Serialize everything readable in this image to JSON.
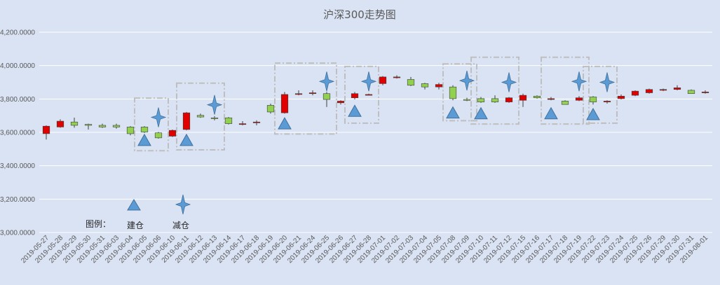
{
  "chart_data": {
    "type": "candlestick",
    "title": "沪深300走势图",
    "ylim": [
      3000,
      4200
    ],
    "yticks": [
      3000,
      3200,
      3400,
      3600,
      3800,
      4000,
      4200
    ],
    "ytick_labels": [
      "3,000.0000",
      "3,200.0000",
      "3,400.0000",
      "3,600.0000",
      "3,800.0000",
      "4,000.0000",
      "4,200.0000"
    ],
    "grid": true,
    "colors": {
      "up": "#e00000",
      "down": "#92d050",
      "marker": "#5b9bd5",
      "background": "#dae3f3",
      "grid": "#ffffff",
      "box": "#bfbfbf"
    },
    "categories": [
      "2019-05-27",
      "2019-05-28",
      "2019-05-29",
      "2019-05-30",
      "2019-05-31",
      "2019-06-03",
      "2019-06-04",
      "2019-06-05",
      "2019-06-06",
      "2019-06-10",
      "2019-06-11",
      "2019-06-12",
      "2019-06-13",
      "2019-06-14",
      "2019-06-17",
      "2019-06-18",
      "2019-06-19",
      "2019-06-20",
      "2019-06-21",
      "2019-06-24",
      "2019-06-25",
      "2019-06-26",
      "2019-06-27",
      "2019-06-28",
      "2019-07-01",
      "2019-07-02",
      "2019-07-03",
      "2019-07-04",
      "2019-07-05",
      "2019-07-08",
      "2019-07-09",
      "2019-07-10",
      "2019-07-11",
      "2019-07-12",
      "2019-07-15",
      "2019-07-16",
      "2019-07-17",
      "2019-07-18",
      "2019-07-19",
      "2019-07-22",
      "2019-07-23",
      "2019-07-24",
      "2019-07-25",
      "2019-07-26",
      "2019-07-29",
      "2019-07-30",
      "2019-07-31",
      "2019-08-01"
    ],
    "candles": [
      {
        "o": 3592,
        "h": 3642,
        "l": 3557,
        "c": 3637
      },
      {
        "o": 3632,
        "h": 3678,
        "l": 3628,
        "c": 3667
      },
      {
        "o": 3662,
        "h": 3688,
        "l": 3628,
        "c": 3642
      },
      {
        "o": 3648,
        "h": 3652,
        "l": 3617,
        "c": 3642
      },
      {
        "o": 3642,
        "h": 3652,
        "l": 3627,
        "c": 3632
      },
      {
        "o": 3642,
        "h": 3652,
        "l": 3622,
        "c": 3632
      },
      {
        "o": 3632,
        "h": 3637,
        "l": 3582,
        "c": 3592
      },
      {
        "o": 3632,
        "h": 3637,
        "l": 3597,
        "c": 3602
      },
      {
        "o": 3597,
        "h": 3602,
        "l": 3562,
        "c": 3567
      },
      {
        "o": 3577,
        "h": 3617,
        "l": 3572,
        "c": 3612
      },
      {
        "o": 3617,
        "h": 3722,
        "l": 3612,
        "c": 3717
      },
      {
        "o": 3702,
        "h": 3712,
        "l": 3687,
        "c": 3692
      },
      {
        "o": 3687,
        "h": 3697,
        "l": 3672,
        "c": 3682
      },
      {
        "o": 3687,
        "h": 3692,
        "l": 3647,
        "c": 3652
      },
      {
        "o": 3652,
        "h": 3667,
        "l": 3642,
        "c": 3652
      },
      {
        "o": 3662,
        "h": 3672,
        "l": 3642,
        "c": 3662
      },
      {
        "o": 3762,
        "h": 3772,
        "l": 3712,
        "c": 3722
      },
      {
        "o": 3717,
        "h": 3842,
        "l": 3712,
        "c": 3827
      },
      {
        "o": 3832,
        "h": 3852,
        "l": 3822,
        "c": 3832
      },
      {
        "o": 3837,
        "h": 3852,
        "l": 3822,
        "c": 3837
      },
      {
        "o": 3832,
        "h": 3842,
        "l": 3752,
        "c": 3797
      },
      {
        "o": 3777,
        "h": 3792,
        "l": 3767,
        "c": 3787
      },
      {
        "o": 3807,
        "h": 3842,
        "l": 3797,
        "c": 3832
      },
      {
        "o": 3827,
        "h": 3832,
        "l": 3822,
        "c": 3827
      },
      {
        "o": 3892,
        "h": 3937,
        "l": 3882,
        "c": 3932
      },
      {
        "o": 3932,
        "h": 3942,
        "l": 3922,
        "c": 3932
      },
      {
        "o": 3917,
        "h": 3932,
        "l": 3877,
        "c": 3882
      },
      {
        "o": 3892,
        "h": 3897,
        "l": 3857,
        "c": 3872
      },
      {
        "o": 3872,
        "h": 3897,
        "l": 3857,
        "c": 3887
      },
      {
        "o": 3872,
        "h": 3882,
        "l": 3792,
        "c": 3802
      },
      {
        "o": 3797,
        "h": 3807,
        "l": 3787,
        "c": 3792
      },
      {
        "o": 3802,
        "h": 3812,
        "l": 3777,
        "c": 3782
      },
      {
        "o": 3802,
        "h": 3822,
        "l": 3777,
        "c": 3782
      },
      {
        "o": 3782,
        "h": 3812,
        "l": 3777,
        "c": 3807
      },
      {
        "o": 3792,
        "h": 3832,
        "l": 3752,
        "c": 3822
      },
      {
        "o": 3817,
        "h": 3822,
        "l": 3802,
        "c": 3807
      },
      {
        "o": 3802,
        "h": 3812,
        "l": 3792,
        "c": 3802
      },
      {
        "o": 3787,
        "h": 3792,
        "l": 3767,
        "c": 3767
      },
      {
        "o": 3792,
        "h": 3817,
        "l": 3787,
        "c": 3807
      },
      {
        "o": 3812,
        "h": 3817,
        "l": 3767,
        "c": 3782
      },
      {
        "o": 3782,
        "h": 3792,
        "l": 3772,
        "c": 3787
      },
      {
        "o": 3802,
        "h": 3827,
        "l": 3797,
        "c": 3817
      },
      {
        "o": 3822,
        "h": 3852,
        "l": 3817,
        "c": 3847
      },
      {
        "o": 3837,
        "h": 3862,
        "l": 3832,
        "c": 3857
      },
      {
        "o": 3852,
        "h": 3862,
        "l": 3847,
        "c": 3857
      },
      {
        "o": 3857,
        "h": 3882,
        "l": 3852,
        "c": 3867
      },
      {
        "o": 3852,
        "h": 3857,
        "l": 3832,
        "c": 3832
      },
      {
        "o": 3842,
        "h": 3852,
        "l": 3832,
        "c": 3842
      }
    ],
    "build_markers": [
      {
        "x": "2019-06-05",
        "y": 3550
      },
      {
        "x": "2019-06-11",
        "y": 3550
      },
      {
        "x": "2019-06-20",
        "y": 3650
      },
      {
        "x": "2019-06-27",
        "y": 3725
      },
      {
        "x": "2019-07-08",
        "y": 3715
      },
      {
        "x": "2019-07-10",
        "y": 3710
      },
      {
        "x": "2019-07-17",
        "y": 3710
      },
      {
        "x": "2019-07-22",
        "y": 3705
      }
    ],
    "reduce_markers": [
      {
        "x": "2019-06-06",
        "y": 3690
      },
      {
        "x": "2019-06-13",
        "y": 3765
      },
      {
        "x": "2019-06-25",
        "y": 3905
      },
      {
        "x": "2019-06-28",
        "y": 3905
      },
      {
        "x": "2019-07-09",
        "y": 3910
      },
      {
        "x": "2019-07-12",
        "y": 3900
      },
      {
        "x": "2019-07-19",
        "y": 3905
      },
      {
        "x": "2019-07-23",
        "y": 3900
      }
    ],
    "highlight_boxes": [
      {
        "from": "2019-06-05",
        "to": "2019-06-06",
        "ymin": 3490,
        "ymax": 3805
      },
      {
        "from": "2019-06-11",
        "to": "2019-06-13",
        "ymin": 3495,
        "ymax": 3895
      },
      {
        "from": "2019-06-20",
        "to": "2019-06-25",
        "ymin": 3590,
        "ymax": 4015
      },
      {
        "from": "2019-06-27",
        "to": "2019-06-28",
        "ymin": 3655,
        "ymax": 3995
      },
      {
        "from": "2019-07-08",
        "to": "2019-07-09",
        "ymin": 3670,
        "ymax": 4010
      },
      {
        "from": "2019-07-10",
        "to": "2019-07-12",
        "ymin": 3650,
        "ymax": 4050
      },
      {
        "from": "2019-07-17",
        "to": "2019-07-19",
        "ymin": 3650,
        "ymax": 4050
      },
      {
        "from": "2019-07-22",
        "to": "2019-07-23",
        "ymin": 3655,
        "ymax": 3995
      }
    ],
    "legend": {
      "label": "图例：",
      "build": "建仓",
      "reduce": "减仓",
      "build_icon": "triangle-up",
      "reduce_icon": "four-point-star"
    }
  }
}
